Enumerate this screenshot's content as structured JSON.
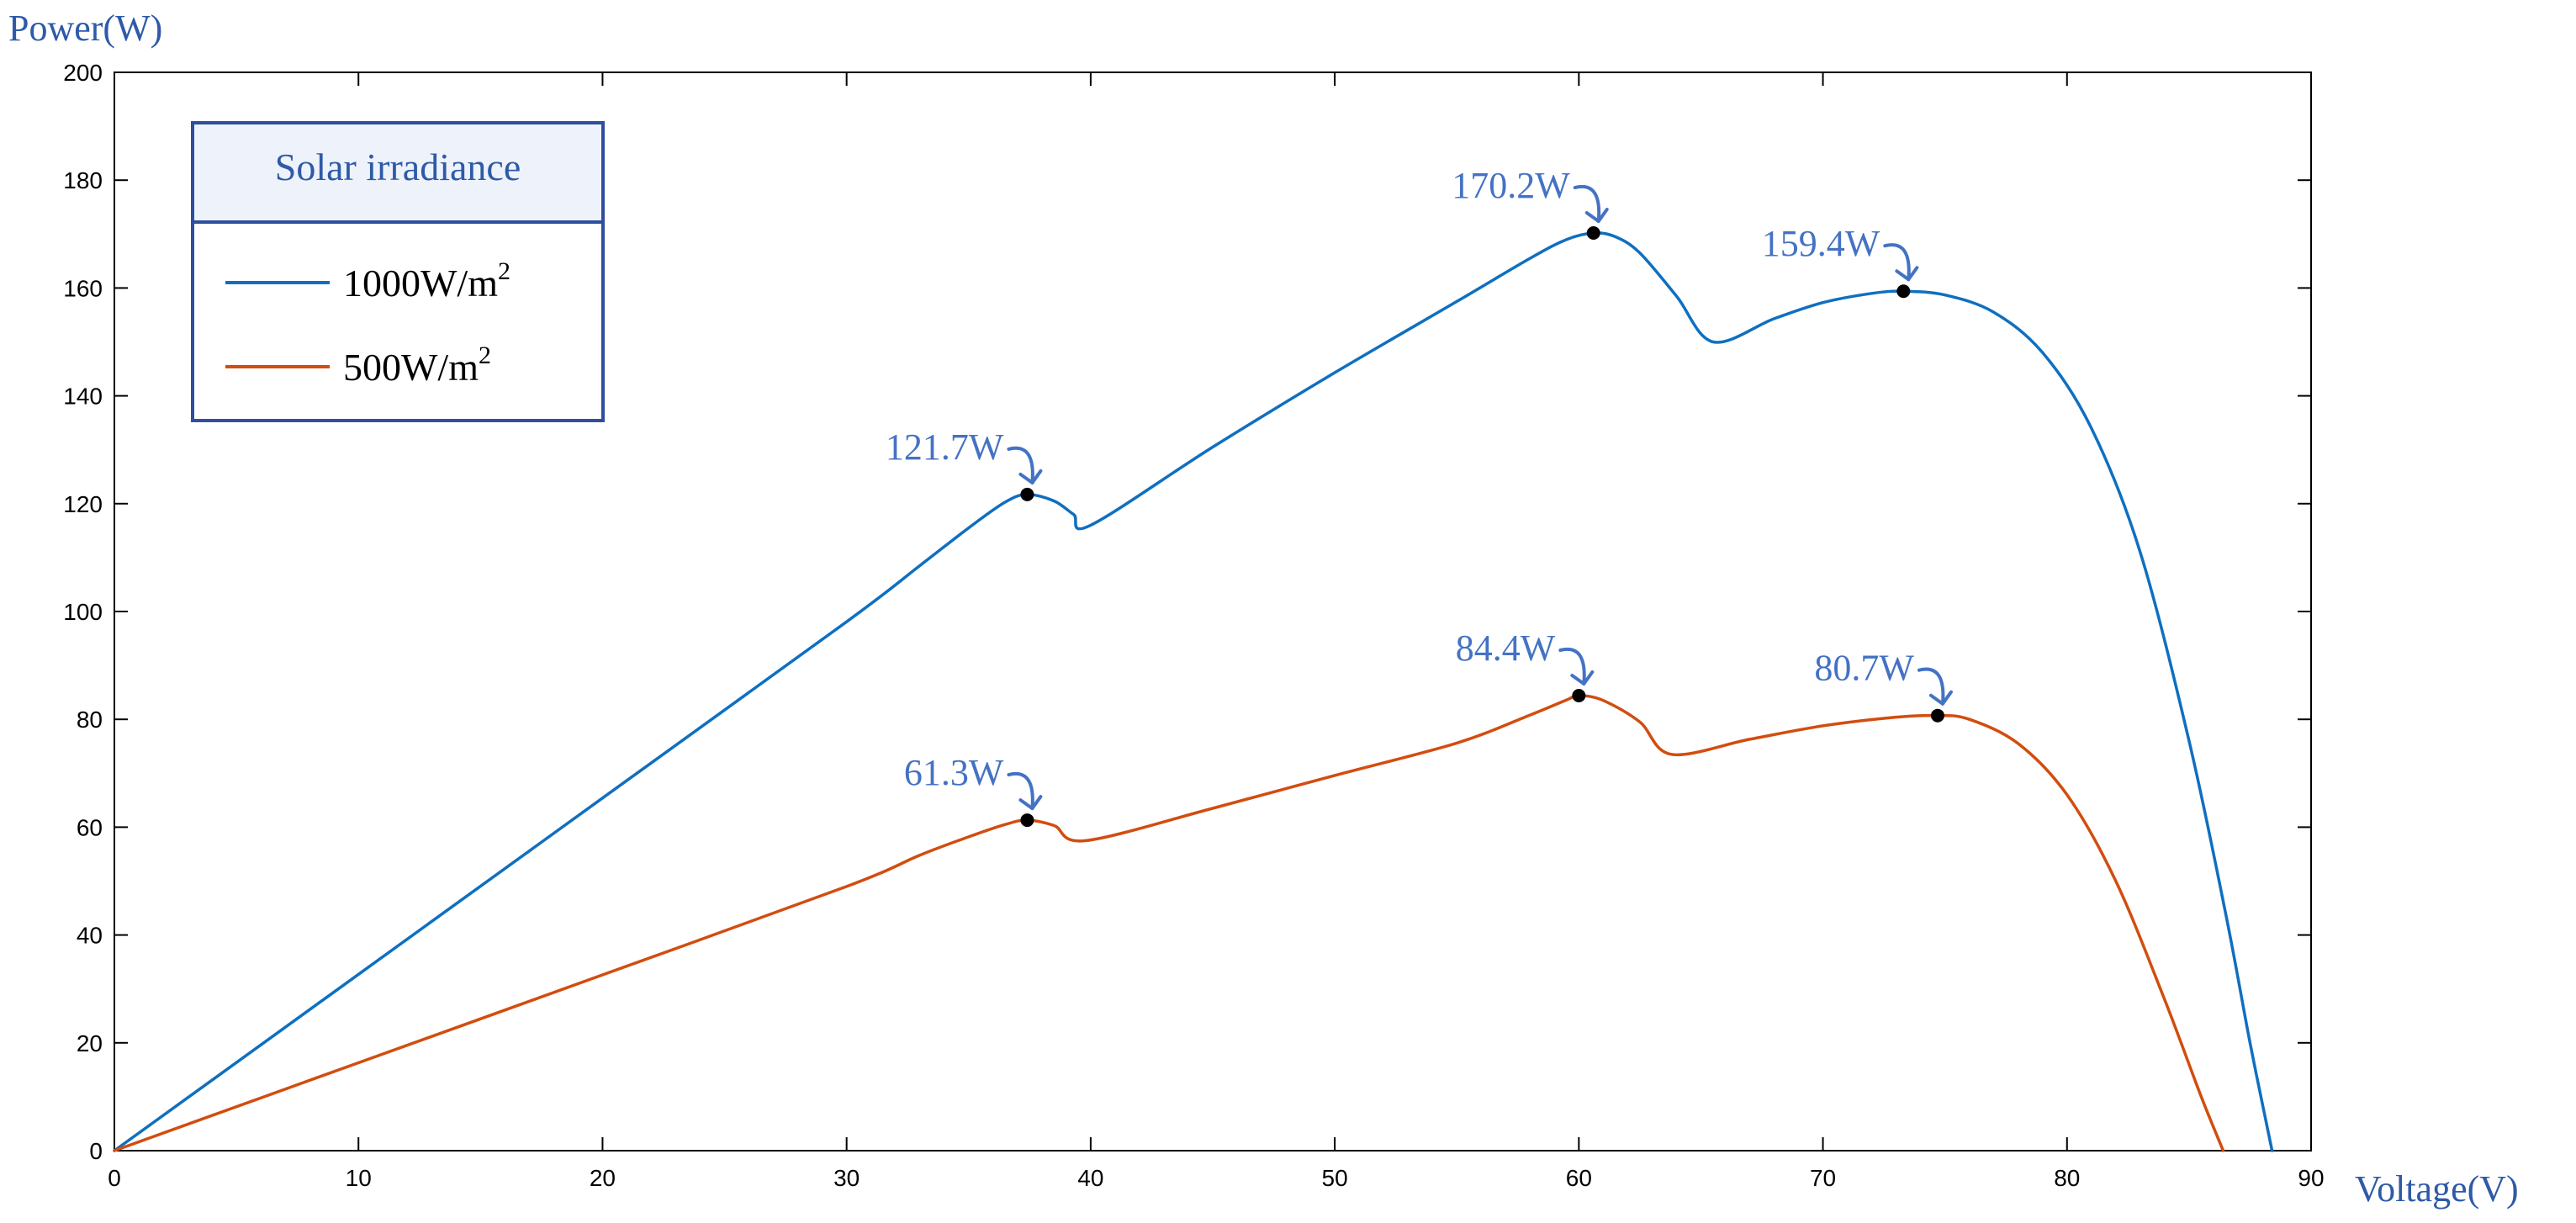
{
  "chart_data": {
    "type": "line",
    "xlabel": "Voltage(V)",
    "ylabel": "Power(W)",
    "xlim": [
      0,
      90
    ],
    "ylim": [
      0,
      200
    ],
    "xticks": [
      0,
      10,
      20,
      30,
      40,
      50,
      60,
      70,
      80,
      90
    ],
    "yticks": [
      0,
      20,
      40,
      60,
      80,
      100,
      120,
      140,
      160,
      180,
      200
    ],
    "grid": false,
    "legend": {
      "title": "Solar irradiance",
      "placement": "top-left",
      "entries": [
        {
          "base": "1000W/m",
          "sup": "2"
        },
        {
          "base": "500W/m",
          "sup": "2"
        }
      ]
    },
    "series": [
      {
        "name": "1000W/m2",
        "color": "#0f6fc0",
        "points": [
          [
            0,
            0
          ],
          [
            10,
            32.7
          ],
          [
            20,
            65.4
          ],
          [
            30,
            98.1
          ],
          [
            33,
            108.5
          ],
          [
            35,
            115.5
          ],
          [
            36.5,
            120.3
          ],
          [
            37.4,
            121.7
          ],
          [
            38.5,
            120.5
          ],
          [
            39.3,
            118.0
          ],
          [
            40,
            116.0
          ],
          [
            45,
            130.5
          ],
          [
            50,
            144.3
          ],
          [
            55,
            157.5
          ],
          [
            58,
            165.5
          ],
          [
            59.5,
            169.0
          ],
          [
            60.6,
            170.2
          ],
          [
            61.5,
            169.5
          ],
          [
            62.5,
            166.5
          ],
          [
            64,
            158.5
          ],
          [
            65.5,
            150.0
          ],
          [
            68,
            154.3
          ],
          [
            70,
            157.3
          ],
          [
            72,
            159.0
          ],
          [
            73.3,
            159.4
          ],
          [
            75,
            158.7
          ],
          [
            77,
            155.5
          ],
          [
            79,
            148.0
          ],
          [
            81,
            134.0
          ],
          [
            83,
            111.0
          ],
          [
            85,
            76.0
          ],
          [
            86.5,
            44.0
          ],
          [
            87.5,
            20.0
          ],
          [
            88.4,
            0
          ]
        ]
      },
      {
        "name": "500W/m2",
        "color": "#d24d0f",
        "points": [
          [
            0,
            0
          ],
          [
            10,
            16.3
          ],
          [
            20,
            32.6
          ],
          [
            30,
            49.0
          ],
          [
            33,
            54.8
          ],
          [
            35,
            58.2
          ],
          [
            36.5,
            60.5
          ],
          [
            37.4,
            61.3
          ],
          [
            38.5,
            60.3
          ],
          [
            39.8,
            57.5
          ],
          [
            45,
            63.5
          ],
          [
            50,
            69.6
          ],
          [
            55,
            75.6
          ],
          [
            58,
            80.8
          ],
          [
            59.5,
            83.6
          ],
          [
            60,
            84.4
          ],
          [
            61,
            83.5
          ],
          [
            62.5,
            79.5
          ],
          [
            63.8,
            73.5
          ],
          [
            67,
            76.3
          ],
          [
            70,
            78.8
          ],
          [
            73,
            80.4
          ],
          [
            74.7,
            80.7
          ],
          [
            76,
            80.0
          ],
          [
            78,
            75.5
          ],
          [
            80,
            66.0
          ],
          [
            82,
            50.0
          ],
          [
            84,
            28.0
          ],
          [
            85.5,
            10.0
          ],
          [
            86.4,
            0
          ]
        ]
      }
    ],
    "annotations": [
      {
        "text": "121.7W",
        "x": 37.4,
        "y": 121.7
      },
      {
        "text": "170.2W",
        "x": 60.6,
        "y": 170.2
      },
      {
        "text": "159.4W",
        "x": 73.3,
        "y": 159.4
      },
      {
        "text": "61.3W",
        "x": 37.4,
        "y": 61.3
      },
      {
        "text": "84.4W",
        "x": 60.0,
        "y": 84.4
      },
      {
        "text": "80.7W",
        "x": 74.7,
        "y": 80.7
      }
    ]
  }
}
